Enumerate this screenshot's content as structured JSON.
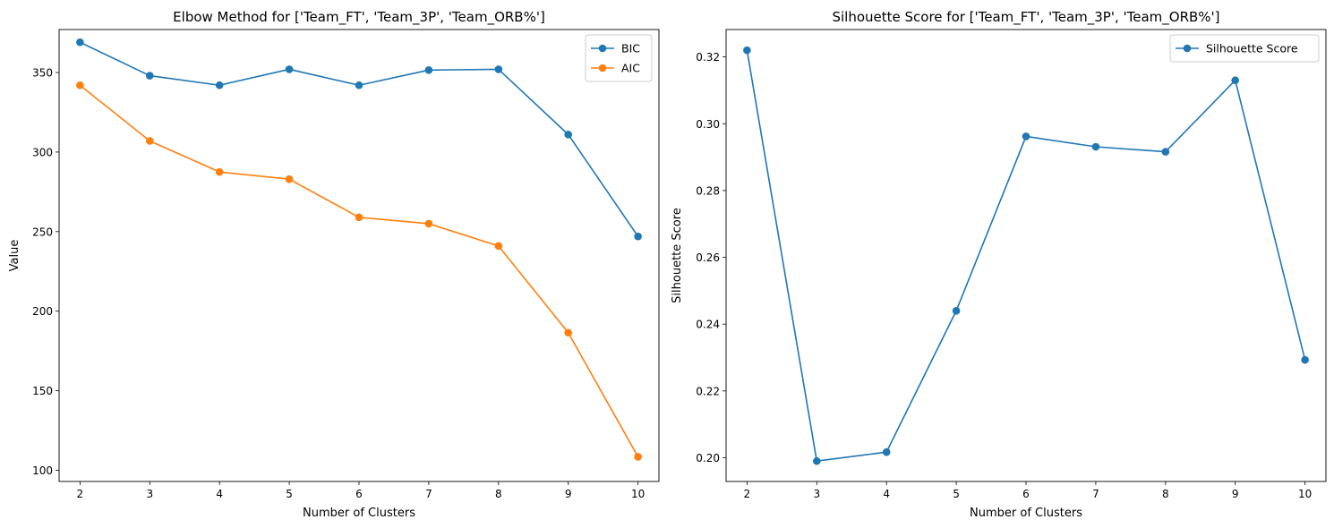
{
  "chart_data": [
    {
      "type": "line",
      "title": "Elbow Method for ['Team_FT', 'Team_3P', 'Team_ORB%']",
      "xlabel": "Number of Clusters",
      "ylabel": "Value",
      "x": [
        2,
        3,
        4,
        5,
        6,
        7,
        8,
        9,
        10
      ],
      "xlim": [
        1.7,
        10.3
      ],
      "ylim": [
        93,
        377
      ],
      "yticks": [
        100,
        150,
        200,
        250,
        300,
        350
      ],
      "grid": false,
      "legend_position": "upper right",
      "series": [
        {
          "name": "BIC",
          "color": "#1f77b4",
          "values": [
            369,
            348,
            342,
            352,
            342,
            351.5,
            352,
            311,
            247
          ]
        },
        {
          "name": "AIC",
          "color": "#ff7f0e",
          "values": [
            342,
            307,
            287.5,
            283,
            259,
            255,
            241,
            186.5,
            108.5
          ]
        }
      ]
    },
    {
      "type": "line",
      "title": "Silhouette Score for ['Team_FT', 'Team_3P', 'Team_ORB%']",
      "xlabel": "Number of Clusters",
      "ylabel": "Silhouette Score",
      "x": [
        2,
        3,
        4,
        5,
        6,
        7,
        8,
        9,
        10
      ],
      "xlim": [
        1.7,
        10.3
      ],
      "ylim": [
        0.1929,
        0.3282
      ],
      "yticks": [
        0.2,
        0.22,
        0.24,
        0.26,
        0.28,
        0.3,
        0.32
      ],
      "ytick_format": 2,
      "grid": false,
      "legend_position": "upper right",
      "series": [
        {
          "name": "Silhouette Score",
          "color": "#1f77b4",
          "values": [
            0.322,
            0.199,
            0.2017,
            0.244,
            0.2962,
            0.2931,
            0.2916,
            0.313,
            0.2293
          ]
        }
      ]
    }
  ]
}
